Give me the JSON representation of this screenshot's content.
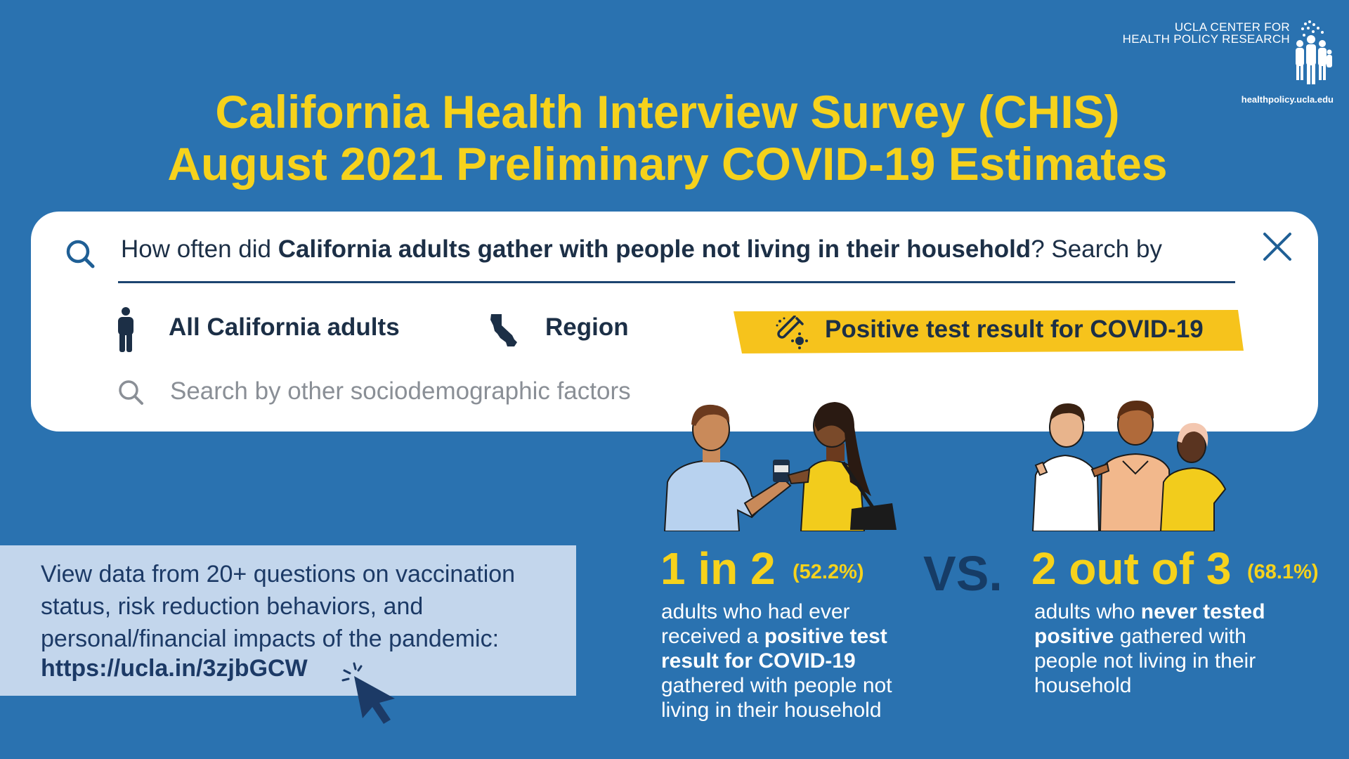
{
  "logo": {
    "line1": "UCLA CENTER FOR",
    "line2": "HEALTH POLICY RESEARCH",
    "url": "healthpolicy.ucla.edu",
    "icon": "people-group-icon"
  },
  "title": {
    "line1": "California Health Interview Survey (CHIS)",
    "line2": "August 2021 Preliminary COVID-19 Estimates"
  },
  "search": {
    "question_pre": "How often did ",
    "question_bold": "California adults gather with people not living in their household",
    "question_post": "? Search by",
    "options": [
      {
        "label": "All California adults",
        "icon": "person-icon"
      },
      {
        "label": "Region",
        "icon": "california-map-icon"
      },
      {
        "label": "Positive test result for COVID-19",
        "icon": "test-tube-virus-icon",
        "highlighted": true
      }
    ],
    "secondary_placeholder": "Search by other sociodemographic factors"
  },
  "info": {
    "text": "View data from 20+ questions on vaccination status, risk reduction behaviors, and personal/financial impacts of the pandemic:",
    "link": "https://ucla.in/3zjbGCW"
  },
  "stats": {
    "left": {
      "big": "1 in 2",
      "pct": "(52.2%)",
      "desc_1": "adults who had ever received a ",
      "desc_bold": "positive test result for COVID-19",
      "desc_2": " gathered with people not living in their household"
    },
    "vs": "VS.",
    "right": {
      "big": "2 out of 3",
      "pct": "(68.1%)",
      "desc_1": "adults who ",
      "desc_bold": "never tested positive",
      "desc_2": " gathered with people not living in their household"
    }
  },
  "colors": {
    "background": "#2a72b0",
    "title": "#f6d21c",
    "highlight": "#f6c31c",
    "dark_text": "#1c2f46",
    "info_box": "#c3d6ec",
    "vs": "#163c66"
  }
}
